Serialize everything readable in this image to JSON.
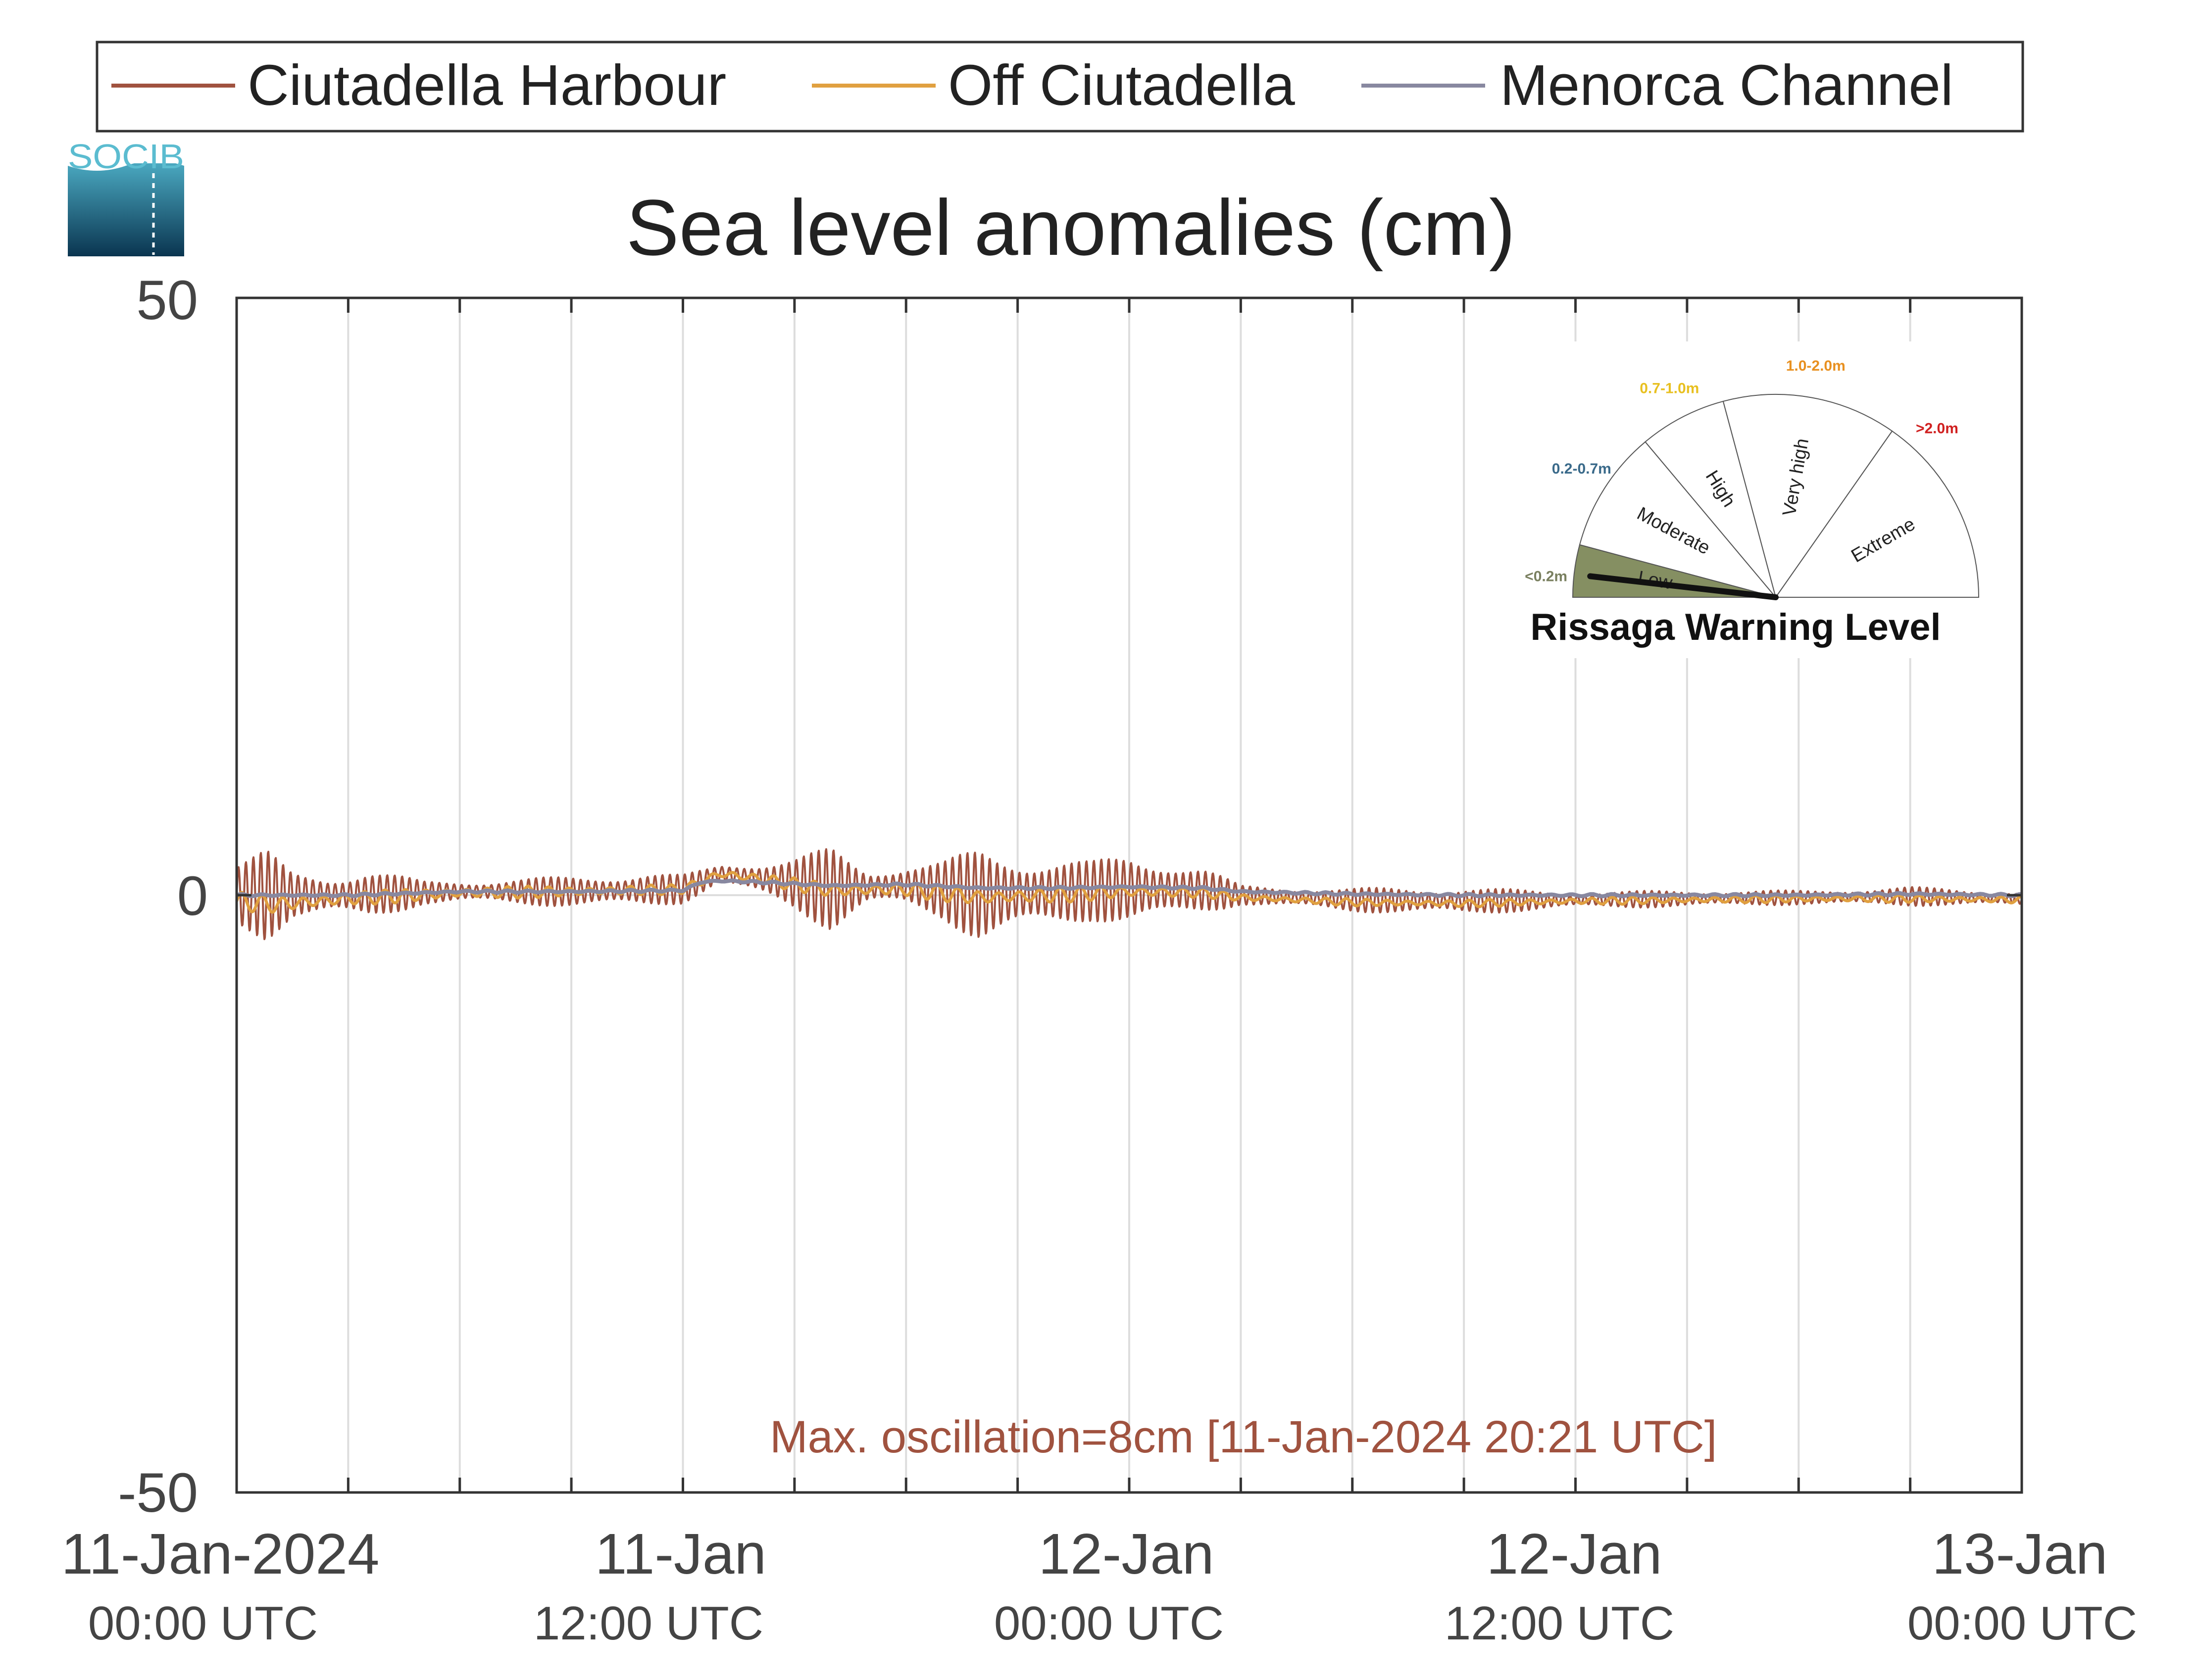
{
  "chart_data": {
    "type": "line",
    "title": "Sea level anomalies (cm)",
    "ylim": [
      -50,
      50
    ],
    "y_ticks": [
      "50",
      "0",
      "-50"
    ],
    "x_range_hours": [
      0,
      48
    ],
    "x_ticks": [
      {
        "hour": 0,
        "label": "11-Jan-2024",
        "sublabel": "00:00 UTC"
      },
      {
        "hour": 12,
        "label": "11-Jan",
        "sublabel": "12:00 UTC"
      },
      {
        "hour": 24,
        "label": "12-Jan",
        "sublabel": "00:00 UTC"
      },
      {
        "hour": 36,
        "label": "12-Jan",
        "sublabel": "12:00 UTC"
      },
      {
        "hour": 48,
        "label": "13-Jan",
        "sublabel": "00:00 UTC"
      }
    ],
    "grid_hours": [
      3,
      6,
      9,
      12,
      15,
      18,
      21,
      24,
      27,
      30,
      33,
      36,
      39,
      42,
      45
    ],
    "series": [
      {
        "name": "Ciutadella Harbour",
        "color": "#a0523f",
        "mean": [
          [
            0,
            0
          ],
          [
            3,
            0
          ],
          [
            6,
            0.3
          ],
          [
            9,
            0.3
          ],
          [
            12,
            0.5
          ],
          [
            13,
            1.8
          ],
          [
            14,
            1.4
          ],
          [
            16,
            0.5
          ],
          [
            18,
            0.8
          ],
          [
            20,
            0
          ],
          [
            22,
            0.2
          ],
          [
            24,
            0.5
          ],
          [
            26,
            0.4
          ],
          [
            27,
            0
          ],
          [
            30,
            -0.4
          ],
          [
            33,
            -0.5
          ],
          [
            36,
            -0.4
          ],
          [
            39,
            -0.3
          ],
          [
            42,
            -0.2
          ],
          [
            45,
            -0.1
          ],
          [
            48,
            -0.3
          ]
        ],
        "amplitude": [
          [
            0,
            3
          ],
          [
            0.8,
            3.8
          ],
          [
            1.5,
            2
          ],
          [
            2.5,
            1.8
          ],
          [
            3.5,
            2.2
          ],
          [
            5,
            1
          ],
          [
            7,
            1
          ],
          [
            9,
            1.3
          ],
          [
            11,
            1.5
          ],
          [
            12,
            1.2
          ],
          [
            13,
            0.8
          ],
          [
            15,
            2.3
          ],
          [
            16,
            3.5
          ],
          [
            17,
            1.5
          ],
          [
            19,
            2.5
          ],
          [
            20,
            4
          ],
          [
            21,
            3.5
          ],
          [
            22,
            3
          ],
          [
            23,
            2.5
          ],
          [
            24,
            3
          ],
          [
            25,
            2.8
          ],
          [
            26,
            2
          ],
          [
            27,
            0.8
          ],
          [
            30,
            1
          ],
          [
            33,
            1.2
          ],
          [
            34,
            1
          ],
          [
            36,
            0.7
          ],
          [
            39,
            0.7
          ],
          [
            42,
            0.6
          ],
          [
            45,
            0.8
          ],
          [
            48,
            0.6
          ]
        ]
      },
      {
        "name": "Off Ciutadella",
        "color": "#e0a040",
        "mean": [
          [
            0,
            -0.5
          ],
          [
            1,
            -0.8
          ],
          [
            3,
            -0.3
          ],
          [
            6,
            0.2
          ],
          [
            9,
            0.3
          ],
          [
            12,
            0.5
          ],
          [
            13,
            1.8
          ],
          [
            14,
            1.4
          ],
          [
            16,
            0.4
          ],
          [
            18,
            0.5
          ],
          [
            20,
            -0.2
          ],
          [
            22,
            0
          ],
          [
            24,
            0.3
          ],
          [
            26,
            0.2
          ],
          [
            27,
            -0.2
          ],
          [
            30,
            -0.6
          ],
          [
            33,
            -0.7
          ],
          [
            36,
            -0.5
          ],
          [
            39,
            -0.4
          ],
          [
            42,
            -0.3
          ],
          [
            45,
            -0.3
          ],
          [
            48,
            -0.4
          ]
        ],
        "amplitude": [
          [
            0,
            0.8
          ],
          [
            3,
            0.6
          ],
          [
            12,
            0.4
          ],
          [
            16,
            0.6
          ],
          [
            20,
            0.7
          ],
          [
            24,
            0.6
          ],
          [
            27,
            0.3
          ],
          [
            48,
            0.3
          ]
        ]
      },
      {
        "name": "Menorca Channel",
        "color": "#8888a0",
        "mean": [
          [
            0,
            0
          ],
          [
            3,
            0
          ],
          [
            6,
            0.3
          ],
          [
            9,
            0.3
          ],
          [
            12,
            0.4
          ],
          [
            12.5,
            1.1
          ],
          [
            13,
            1.2
          ],
          [
            14,
            1.1
          ],
          [
            16,
            0.8
          ],
          [
            18,
            0.9
          ],
          [
            20,
            0.6
          ],
          [
            22,
            0.6
          ],
          [
            24,
            0.7
          ],
          [
            26,
            0.6
          ],
          [
            27,
            0.3
          ],
          [
            30,
            0.1
          ],
          [
            33,
            0
          ],
          [
            36,
            0
          ],
          [
            39,
            0
          ],
          [
            42,
            0
          ],
          [
            45,
            0.1
          ],
          [
            48,
            0
          ]
        ],
        "amplitude": [
          [
            0,
            0.1
          ],
          [
            48,
            0.1
          ]
        ]
      }
    ],
    "annotation": {
      "text": "Max. oscillation=8cm [11-Jan-2024 20:21 UTC]",
      "color": "#a0523f"
    },
    "legend_position": "top (outside plot)",
    "grid": "vertical only"
  },
  "logo": {
    "text": "SOCIB",
    "color": "#5bbcd0"
  },
  "gauge": {
    "title": "Rissaga Warning Level",
    "needle_level_fraction": 0.04,
    "sectors": [
      {
        "label": "Low",
        "range": "<0.2m",
        "range_color": "#7a8060",
        "fill": "#858f62"
      },
      {
        "label": "Moderate",
        "range": "0.2-0.7m",
        "range_color": "#3a6a8a",
        "fill": "#ffffff"
      },
      {
        "label": "High",
        "range": "0.7-1.0m",
        "range_color": "#e8c020",
        "fill": "#ffffff"
      },
      {
        "label": "Very high",
        "range": "1.0-2.0m",
        "range_color": "#e89020",
        "fill": "#ffffff"
      },
      {
        "label": "Extreme",
        "range": ">2.0m",
        "range_color": "#d02020",
        "fill": "#ffffff"
      }
    ]
  }
}
